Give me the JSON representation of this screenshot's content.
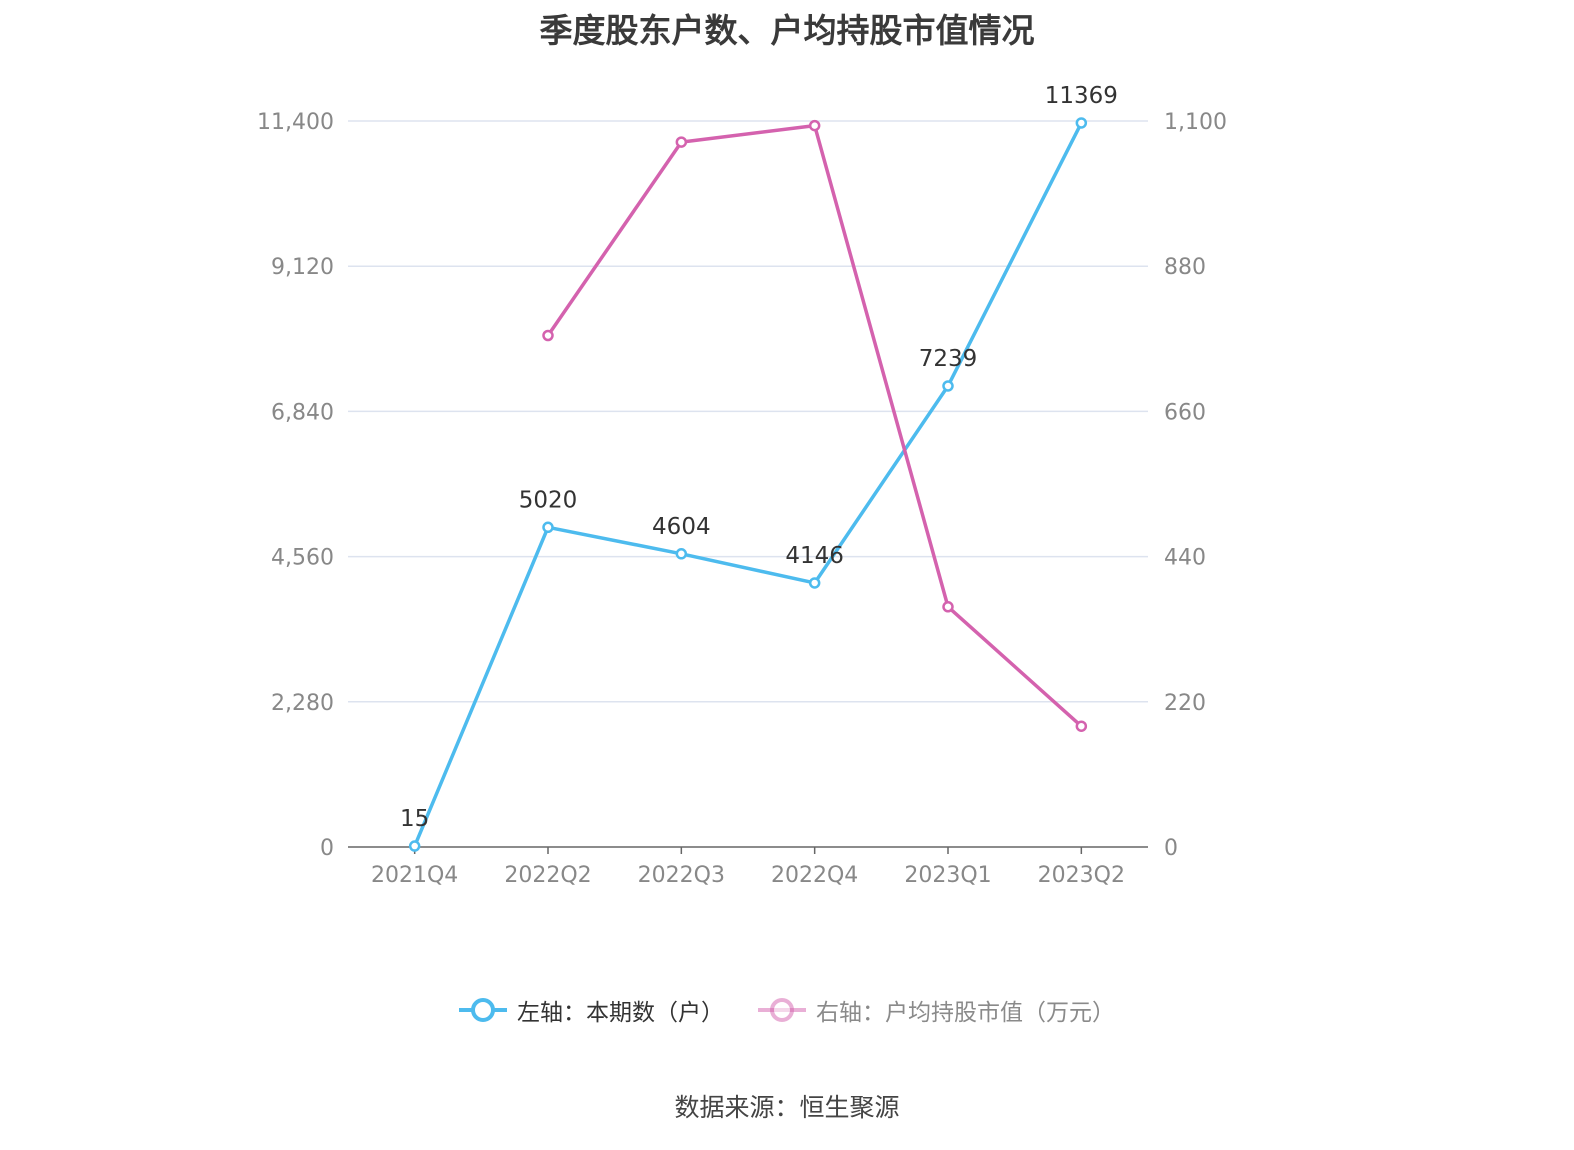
{
  "colors": {
    "series_left": "#4dbbee",
    "series_right": "#d462ae",
    "grid": "#dde3ef",
    "axis_text": "#888888",
    "label_text": "#333333"
  },
  "chart_data": {
    "type": "line",
    "title": "季度股东户数、户均持股市值情况",
    "categories": [
      "2021Q4",
      "2022Q2",
      "2022Q3",
      "2022Q4",
      "2023Q1",
      "2023Q2"
    ],
    "y_left": {
      "ticks": [
        0,
        2280,
        4560,
        6840,
        9120,
        11400
      ],
      "tick_labels": [
        "0",
        "2,280",
        "4,560",
        "6,840",
        "9,120",
        "11,400"
      ],
      "ylim": [
        0,
        11400
      ]
    },
    "y_right": {
      "ticks": [
        0,
        220,
        440,
        660,
        880,
        1100
      ],
      "tick_labels": [
        "0",
        "220",
        "440",
        "660",
        "880",
        "1,100"
      ],
      "ylim": [
        0,
        1100
      ]
    },
    "series": [
      {
        "name": "左轴：本期数（户）",
        "axis": "left",
        "values": [
          15,
          5020,
          4604,
          4146,
          7239,
          11369
        ],
        "labels": [
          "15",
          "5020",
          "4604",
          "4146",
          "7239",
          "11369"
        ]
      },
      {
        "name": "右轴：户均持股市值（万元）",
        "axis": "right",
        "values": [
          null,
          775,
          1068,
          1093,
          364,
          183
        ]
      }
    ],
    "grid": true,
    "legend": "bottom"
  },
  "source_text": "数据来源：恒生聚源"
}
